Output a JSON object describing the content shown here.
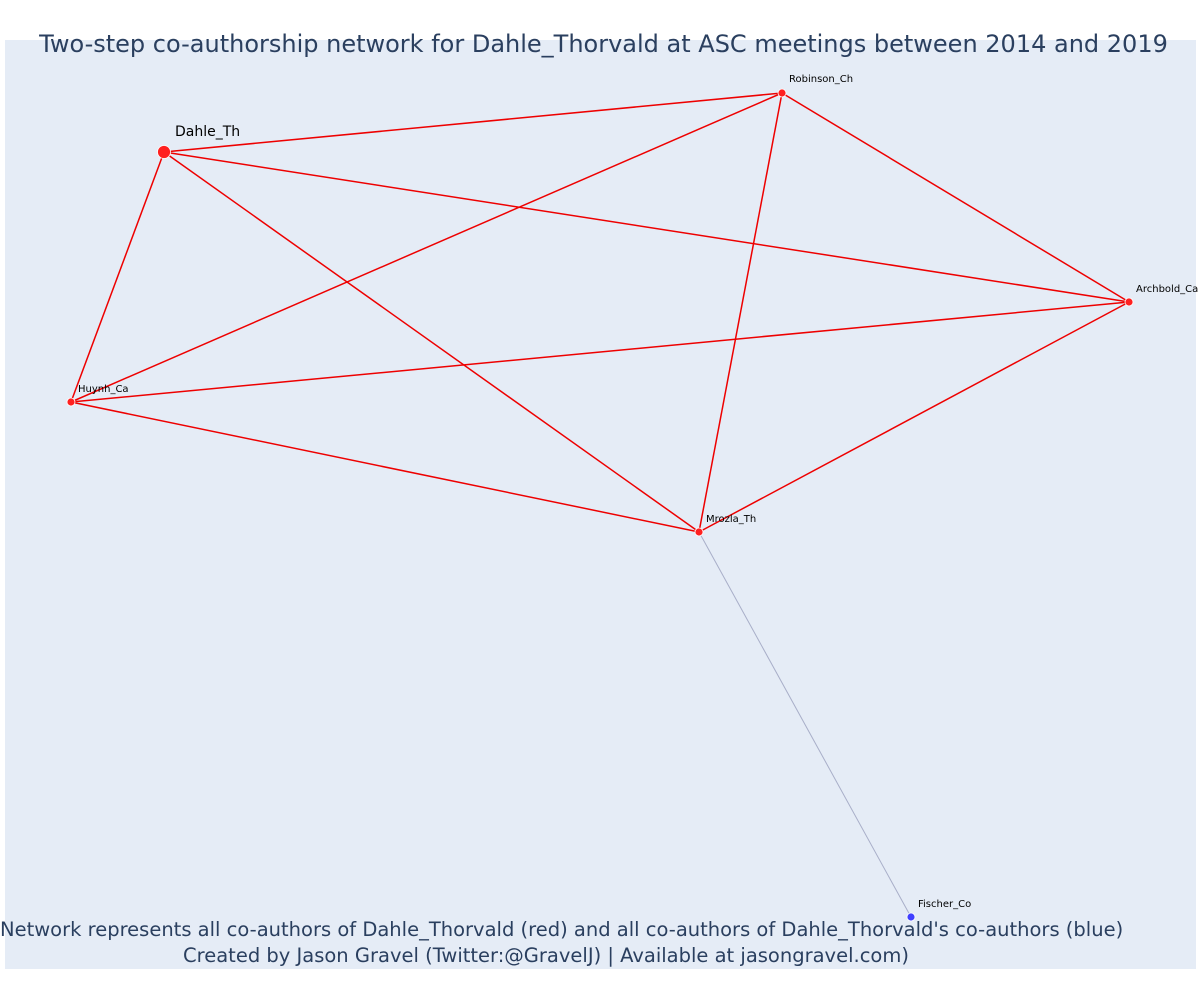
{
  "title": "Two-step co-authorship network for Dahle_Thorvald at ASC meetings between 2014 and 2019",
  "caption": {
    "line1": "Network represents all co-authors of Dahle_Thorvald (red) and all co-authors of Dahle_Thorvald's co-authors (blue)",
    "line2": "Created by Jason Gravel (Twitter:@GravelJ) | Available at jasongravel.com)"
  },
  "colors": {
    "background": "#e5ecf6",
    "first_degree": "#ff2020",
    "second_degree": "#4040ff",
    "first_degree_edge": "#ee0000",
    "second_degree_edge": "#a8aec8",
    "text": "#2a3f5f"
  },
  "network": {
    "nodes": [
      {
        "id": "Dahle_Th",
        "label": "Dahle_Th",
        "group": "focal"
      },
      {
        "id": "Robinson_Ch",
        "label": "Robinson_Ch",
        "group": "first_degree"
      },
      {
        "id": "Archbold_Ca",
        "label": "Archbold_Ca",
        "group": "first_degree"
      },
      {
        "id": "Huynh_Ca",
        "label": "Huynh_Ca",
        "group": "first_degree"
      },
      {
        "id": "Mrozla_Th",
        "label": "Mrozla_Th",
        "group": "first_degree"
      },
      {
        "id": "Fischer_Co",
        "label": "Fischer_Co",
        "group": "second_degree"
      }
    ],
    "edges": [
      {
        "source": "Dahle_Th",
        "target": "Robinson_Ch",
        "type": "first_degree"
      },
      {
        "source": "Dahle_Th",
        "target": "Archbold_Ca",
        "type": "first_degree"
      },
      {
        "source": "Dahle_Th",
        "target": "Huynh_Ca",
        "type": "first_degree"
      },
      {
        "source": "Dahle_Th",
        "target": "Mrozla_Th",
        "type": "first_degree"
      },
      {
        "source": "Robinson_Ch",
        "target": "Huynh_Ca",
        "type": "first_degree"
      },
      {
        "source": "Robinson_Ch",
        "target": "Mrozla_Th",
        "type": "first_degree"
      },
      {
        "source": "Robinson_Ch",
        "target": "Archbold_Ca",
        "type": "first_degree"
      },
      {
        "source": "Huynh_Ca",
        "target": "Archbold_Ca",
        "type": "first_degree"
      },
      {
        "source": "Huynh_Ca",
        "target": "Mrozla_Th",
        "type": "first_degree"
      },
      {
        "source": "Archbold_Ca",
        "target": "Mrozla_Th",
        "type": "first_degree"
      },
      {
        "source": "Mrozla_Th",
        "target": "Fischer_Co",
        "type": "second_degree"
      }
    ]
  }
}
